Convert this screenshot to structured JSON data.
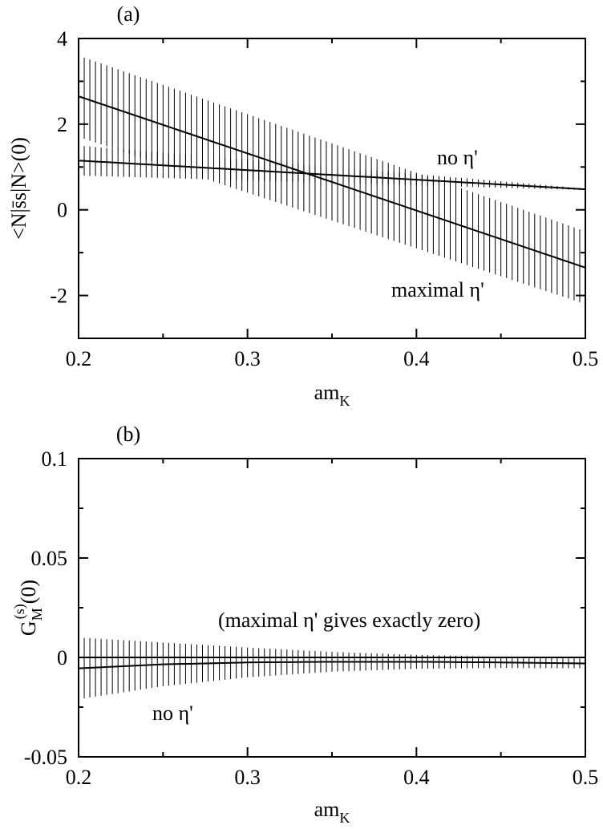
{
  "chart_data": [
    {
      "type": "line",
      "panel_label": "(a)",
      "xlabel": "am",
      "xlabel_sub": "K",
      "ylabel": "<N|s̄s|N>(0)",
      "xlim": [
        0.2,
        0.5
      ],
      "ylim": [
        -3,
        4
      ],
      "xticks": [
        0.2,
        0.3,
        0.4,
        0.5
      ],
      "xtick_labels": [
        "0.2",
        "0.3",
        "0.4",
        "0.5"
      ],
      "yticks": [
        -2,
        0,
        2,
        4
      ],
      "ytick_labels": [
        "-2",
        "0",
        "2",
        "4"
      ],
      "series": [
        {
          "name": "no η'",
          "x": [
            0.2,
            0.5
          ],
          "y": [
            1.15,
            0.48
          ],
          "err": [
            0.35,
            0.02
          ]
        },
        {
          "name": "maximal η'",
          "x": [
            0.2,
            0.5
          ],
          "y": [
            2.65,
            -1.35
          ],
          "err": [
            0.95,
            0.85
          ]
        }
      ],
      "annotations": [
        "no η'",
        "maximal η'"
      ]
    },
    {
      "type": "line",
      "panel_label": "(b)",
      "xlabel": "am",
      "xlabel_sub": "K",
      "ylabel": "G",
      "ylabel_sub": "M",
      "ylabel_sup": "(s)",
      "ylabel_tail": "(0)",
      "xlim": [
        0.2,
        0.5
      ],
      "ylim": [
        -0.05,
        0.1
      ],
      "xticks": [
        0.2,
        0.3,
        0.4,
        0.5
      ],
      "xtick_labels": [
        "0.2",
        "0.3",
        "0.4",
        "0.5"
      ],
      "yticks": [
        -0.05,
        0,
        0.05,
        0.1
      ],
      "ytick_labels": [
        "-0.05",
        "0",
        "0.05",
        "0.1"
      ],
      "series": [
        {
          "name": "maximal η'",
          "x": [
            0.2,
            0.5
          ],
          "y": [
            0,
            0
          ],
          "err": [
            0,
            0
          ]
        },
        {
          "name": "no η'",
          "x": [
            0.2,
            0.25,
            0.3,
            0.35,
            0.4,
            0.45,
            0.5
          ],
          "y": [
            -0.0055,
            -0.0035,
            -0.0025,
            -0.0022,
            -0.0022,
            -0.0025,
            -0.003
          ],
          "err": [
            0.0155,
            0.011,
            0.0075,
            0.005,
            0.0035,
            0.0028,
            0.0025
          ]
        }
      ],
      "annotations": [
        "(maximal η' gives exactly zero)",
        "no η'"
      ]
    }
  ]
}
